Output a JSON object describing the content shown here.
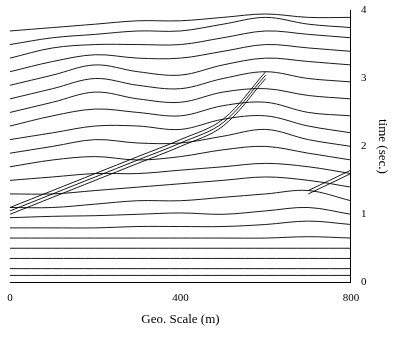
{
  "chart_data": {
    "type": "line",
    "x_label": "Geo. Scale (m)",
    "y_label": "time (sec.)",
    "x": [
      0,
      100,
      200,
      300,
      400,
      500,
      600,
      700,
      800
    ],
    "xlim": [
      0,
      800
    ],
    "xticks": [
      0,
      400,
      800
    ],
    "ylim": [
      0,
      4
    ],
    "yticks": [
      0,
      1,
      2,
      3,
      4
    ],
    "grid": false,
    "color": "#000000",
    "series": [
      {
        "values": [
          0.1,
          0.1,
          0.1,
          0.1,
          0.1,
          0.1,
          0.1,
          0.1,
          0.1
        ]
      },
      {
        "values": [
          0.2,
          0.2,
          0.2,
          0.2,
          0.2,
          0.2,
          0.2,
          0.2,
          0.2
        ]
      },
      {
        "values": [
          0.35,
          0.35,
          0.35,
          0.35,
          0.35,
          0.35,
          0.35,
          0.35,
          0.35
        ]
      },
      {
        "values": [
          0.5,
          0.5,
          0.5,
          0.5,
          0.5,
          0.5,
          0.5,
          0.5,
          0.5
        ]
      },
      {
        "values": [
          0.65,
          0.65,
          0.65,
          0.65,
          0.65,
          0.65,
          0.65,
          0.67,
          0.65
        ]
      },
      {
        "values": [
          0.8,
          0.8,
          0.8,
          0.82,
          0.82,
          0.82,
          0.85,
          0.9,
          0.85
        ]
      },
      {
        "values": [
          0.95,
          0.97,
          0.98,
          1.0,
          1.02,
          1.0,
          1.05,
          1.1,
          1.0
        ]
      },
      {
        "values": [
          1.1,
          1.1,
          1.15,
          1.2,
          1.2,
          1.25,
          1.3,
          1.35,
          1.2
        ]
      },
      {
        "values": [
          1.3,
          1.3,
          1.35,
          1.4,
          1.45,
          1.5,
          1.55,
          1.5,
          1.4
        ]
      },
      {
        "values": [
          1.5,
          1.55,
          1.6,
          1.6,
          1.65,
          1.7,
          1.75,
          1.7,
          1.6
        ]
      },
      {
        "values": [
          1.7,
          1.8,
          1.85,
          1.8,
          1.85,
          1.95,
          2.0,
          1.9,
          1.8
        ]
      },
      {
        "values": [
          1.9,
          2.0,
          2.1,
          2.05,
          2.05,
          2.15,
          2.25,
          2.1,
          2.0
        ]
      },
      {
        "values": [
          2.1,
          2.2,
          2.3,
          2.3,
          2.25,
          2.4,
          2.45,
          2.3,
          2.2
        ]
      },
      {
        "values": [
          2.3,
          2.45,
          2.55,
          2.5,
          2.45,
          2.6,
          2.65,
          2.5,
          2.45
        ]
      },
      {
        "values": [
          2.5,
          2.65,
          2.8,
          2.7,
          2.65,
          2.8,
          2.85,
          2.75,
          2.7
        ]
      },
      {
        "values": [
          2.7,
          2.85,
          3.0,
          2.9,
          2.85,
          3.0,
          3.1,
          3.0,
          2.95
        ]
      },
      {
        "values": [
          2.9,
          3.05,
          3.2,
          3.1,
          3.05,
          3.2,
          3.3,
          3.25,
          3.2
        ]
      },
      {
        "values": [
          3.1,
          3.25,
          3.35,
          3.3,
          3.3,
          3.4,
          3.5,
          3.45,
          3.4
        ]
      },
      {
        "values": [
          3.3,
          3.45,
          3.5,
          3.5,
          3.5,
          3.6,
          3.7,
          3.65,
          3.6
        ]
      },
      {
        "values": [
          3.5,
          3.6,
          3.65,
          3.7,
          3.7,
          3.8,
          3.9,
          3.8,
          3.75
        ]
      },
      {
        "values": [
          3.7,
          3.75,
          3.8,
          3.85,
          3.85,
          3.9,
          3.95,
          3.9,
          3.9
        ]
      },
      {
        "values": [
          1.0,
          1.25,
          1.5,
          1.75,
          2.0,
          2.3,
          3.0,
          null,
          null
        ]
      },
      {
        "values": [
          1.05,
          1.3,
          1.55,
          1.8,
          2.05,
          2.35,
          3.05,
          null,
          null
        ]
      },
      {
        "values": [
          1.1,
          1.35,
          1.6,
          1.85,
          2.1,
          2.4,
          3.1,
          null,
          null
        ]
      },
      {
        "values": [
          null,
          null,
          null,
          null,
          null,
          null,
          null,
          1.3,
          1.6
        ]
      },
      {
        "values": [
          null,
          null,
          null,
          null,
          null,
          null,
          null,
          1.35,
          1.65
        ]
      }
    ]
  }
}
